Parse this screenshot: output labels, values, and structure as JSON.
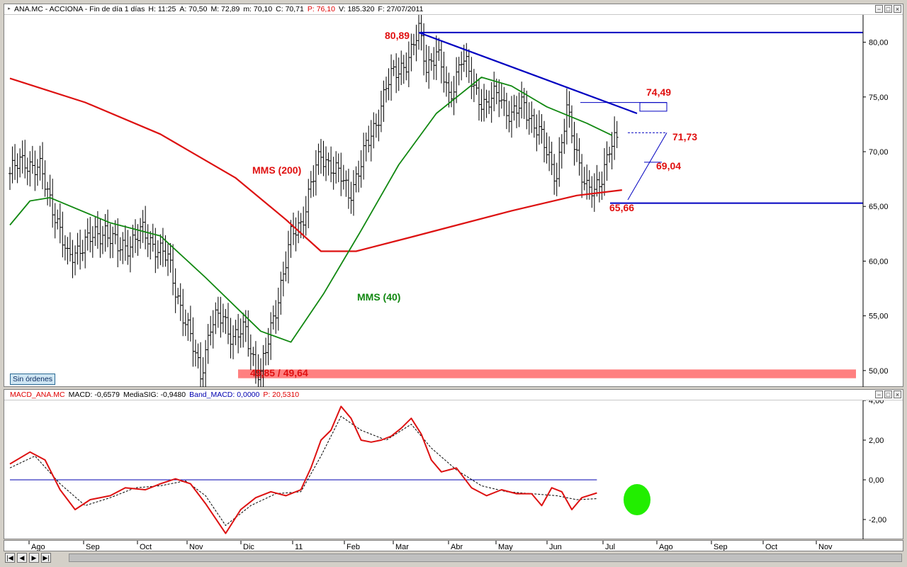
{
  "price_window": {
    "title": "ANA.MC - ACCIONA - Fin de día 1 días",
    "fields": [
      {
        "label": "H:",
        "value": "11:25",
        "color": "#000000"
      },
      {
        "label": "A:",
        "value": "70,50",
        "color": "#000000"
      },
      {
        "label": "M:",
        "value": "72,89",
        "color": "#000000"
      },
      {
        "label": "m:",
        "value": "70,10",
        "color": "#000000"
      },
      {
        "label": "C:",
        "value": "70,71",
        "color": "#000000"
      },
      {
        "label": "P:",
        "value": "76,10",
        "color": "#e00000"
      },
      {
        "label": "V:",
        "value": "185.320",
        "color": "#000000"
      },
      {
        "label": "F:",
        "value": "27/07/2011",
        "color": "#000000"
      }
    ],
    "y_ticks": [
      "80,00",
      "75,00",
      "70,00",
      "65,00",
      "60,00",
      "55,00",
      "50,00"
    ],
    "annotations": {
      "high": "80,89",
      "resistance": "74,49",
      "level_1": "71,73",
      "level_2": "69,04",
      "support": "65,66",
      "low": "49,85 / 49,64",
      "mms200": "MMS (200)",
      "mms40": "MMS (40)"
    },
    "orders_button": "Sin órdenes"
  },
  "macd_window": {
    "title": "MACD_ANA.MC",
    "fields": [
      {
        "label": "MACD:",
        "value": "-0,6579",
        "color": "#000000"
      },
      {
        "label": "MediaSIG:",
        "value": "-0,9480",
        "color": "#000000"
      },
      {
        "label": "Band_MACD:",
        "value": "0,0000",
        "color": "#0000b0"
      },
      {
        "label": "P:",
        "value": "20,5310",
        "color": "#e00000"
      }
    ],
    "y_ticks": [
      "4,00",
      "2,00",
      "0,00",
      "-2,00"
    ]
  },
  "x_axis": {
    "labels": [
      "Ago",
      "Sep",
      "Oct",
      "Nov",
      "Dic",
      "11",
      "Feb",
      "Mar",
      "Abr",
      "May",
      "Jun",
      "Jul",
      "Ago",
      "Sep",
      "Oct",
      "Nov"
    ]
  },
  "window_buttons": {
    "minimize": "−",
    "restore": "□",
    "close": "×"
  },
  "nav_buttons": [
    "|◀",
    "◀",
    "▶",
    "▶|"
  ],
  "colors": {
    "mms200": "#dd1111",
    "mms40": "#118811",
    "trendline": "#0000c0",
    "annotation": "#e01010",
    "support_zone": "#ff8080",
    "macd_line": "#dd1111",
    "macd_signal": "#000000",
    "macd_zero": "#0000b0",
    "highlight": "#22ee00"
  },
  "chart_data": [
    {
      "type": "ohlc",
      "y_range": [
        48.5,
        82.5
      ],
      "ticks": [
        80,
        75,
        70,
        65,
        60,
        55,
        50
      ],
      "anchors_close": [
        [
          0,
          68.0
        ],
        [
          6,
          69.3
        ],
        [
          12,
          68.2
        ],
        [
          18,
          64.5
        ],
        [
          23,
          60.0
        ],
        [
          28,
          61.5
        ],
        [
          33,
          62.0
        ],
        [
          38,
          63.0
        ],
        [
          43,
          61.0
        ],
        [
          48,
          61.8
        ],
        [
          53,
          62.5
        ],
        [
          58,
          61.5
        ],
        [
          63,
          60.0
        ],
        [
          68,
          56.0
        ],
        [
          73,
          52.0
        ],
        [
          76,
          49.85
        ],
        [
          80,
          54.0
        ],
        [
          85,
          55.0
        ],
        [
          89,
          53.0
        ],
        [
          94,
          53.5
        ],
        [
          98,
          50.5
        ],
        [
          100,
          49.64
        ],
        [
          103,
          52.5
        ],
        [
          108,
          58.0
        ],
        [
          112,
          62.0
        ],
        [
          116,
          63.5
        ],
        [
          120,
          67.0
        ],
        [
          124,
          69.5
        ],
        [
          128,
          69.0
        ],
        [
          132,
          67.5
        ],
        [
          135,
          66.0
        ],
        [
          140,
          69.0
        ],
        [
          145,
          72.0
        ],
        [
          150,
          76.0
        ],
        [
          155,
          77.5
        ],
        [
          160,
          79.0
        ],
        [
          163,
          80.89
        ],
        [
          166,
          78.0
        ],
        [
          170,
          79.0
        ],
        [
          175,
          75.0
        ],
        [
          180,
          78.5
        ],
        [
          185,
          76.0
        ],
        [
          190,
          74.0
        ],
        [
          195,
          75.5
        ],
        [
          200,
          73.0
        ],
        [
          205,
          74.5
        ],
        [
          210,
          72.0
        ],
        [
          214,
          70.0
        ],
        [
          218,
          68.0
        ],
        [
          222,
          73.5
        ],
        [
          226,
          70.0
        ],
        [
          230,
          66.5
        ],
        [
          233,
          66.0
        ],
        [
          236,
          68.0
        ],
        [
          239,
          70.5
        ],
        [
          242,
          70.71
        ]
      ],
      "series": [
        {
          "name": "MMS (200)",
          "points": [
            [
              0,
              76.7
            ],
            [
              30,
              74.5
            ],
            [
              60,
              71.6
            ],
            [
              90,
              67.6
            ],
            [
              110,
              63.8
            ],
            [
              124,
              60.9
            ],
            [
              138,
              60.9
            ],
            [
              160,
              62.2
            ],
            [
              200,
              64.6
            ],
            [
              226,
              66.0
            ],
            [
              244,
              66.5
            ]
          ]
        },
        {
          "name": "MMS (40)",
          "points": [
            [
              0,
              63.3
            ],
            [
              8,
              65.5
            ],
            [
              16,
              65.8
            ],
            [
              40,
              63.5
            ],
            [
              60,
              62.3
            ],
            [
              78,
              58.5
            ],
            [
              100,
              53.6
            ],
            [
              112,
              52.6
            ],
            [
              125,
              57.0
            ],
            [
              140,
              62.8
            ],
            [
              155,
              68.8
            ],
            [
              170,
              73.5
            ],
            [
              188,
              76.8
            ],
            [
              200,
              76.0
            ],
            [
              214,
              74.1
            ],
            [
              230,
              72.6
            ],
            [
              240,
              71.5
            ]
          ]
        }
      ],
      "reference_lines": [
        80.89,
        65.3
      ],
      "trendline": [
        [
          163,
          80.89
        ],
        [
          250,
          73.5
        ]
      ],
      "support_zone": [
        49.3,
        50.1
      ]
    },
    {
      "type": "line",
      "y_range": [
        -3.0,
        4.0
      ],
      "ticks": [
        4,
        2,
        0,
        -2
      ],
      "series": [
        {
          "name": "MACD",
          "points": [
            [
              0,
              0.8
            ],
            [
              8,
              1.4
            ],
            [
              14,
              1.0
            ],
            [
              20,
              -0.5
            ],
            [
              26,
              -1.5
            ],
            [
              32,
              -1.0
            ],
            [
              40,
              -0.8
            ],
            [
              46,
              -0.4
            ],
            [
              54,
              -0.5
            ],
            [
              60,
              -0.2
            ],
            [
              66,
              0.05
            ],
            [
              72,
              -0.2
            ],
            [
              78,
              -1.2
            ],
            [
              86,
              -2.7
            ],
            [
              92,
              -1.5
            ],
            [
              98,
              -0.9
            ],
            [
              104,
              -0.6
            ],
            [
              110,
              -0.8
            ],
            [
              116,
              -0.5
            ],
            [
              120,
              0.6
            ],
            [
              124,
              2.0
            ],
            [
              128,
              2.5
            ],
            [
              132,
              3.7
            ],
            [
              136,
              3.1
            ],
            [
              140,
              2.0
            ],
            [
              144,
              1.9
            ],
            [
              148,
              2.0
            ],
            [
              152,
              2.2
            ],
            [
              156,
              2.6
            ],
            [
              160,
              3.1
            ],
            [
              164,
              2.3
            ],
            [
              168,
              1.0
            ],
            [
              172,
              0.4
            ],
            [
              178,
              0.6
            ],
            [
              184,
              -0.4
            ],
            [
              190,
              -0.8
            ],
            [
              196,
              -0.5
            ],
            [
              202,
              -0.7
            ],
            [
              208,
              -0.7
            ],
            [
              212,
              -1.3
            ],
            [
              216,
              -0.4
            ],
            [
              220,
              -0.6
            ],
            [
              224,
              -1.5
            ],
            [
              228,
              -0.9
            ],
            [
              234,
              -0.66
            ]
          ]
        },
        {
          "name": "MediaSIG",
          "points": [
            [
              0,
              0.6
            ],
            [
              10,
              1.2
            ],
            [
              20,
              -0.2
            ],
            [
              30,
              -1.3
            ],
            [
              40,
              -0.9
            ],
            [
              50,
              -0.4
            ],
            [
              60,
              -0.3
            ],
            [
              70,
              -0.05
            ],
            [
              78,
              -0.8
            ],
            [
              86,
              -2.3
            ],
            [
              96,
              -1.3
            ],
            [
              106,
              -0.7
            ],
            [
              116,
              -0.6
            ],
            [
              124,
              1.2
            ],
            [
              132,
              3.2
            ],
            [
              140,
              2.5
            ],
            [
              150,
              2.0
            ],
            [
              160,
              2.8
            ],
            [
              168,
              1.6
            ],
            [
              178,
              0.5
            ],
            [
              188,
              -0.3
            ],
            [
              198,
              -0.6
            ],
            [
              208,
              -0.7
            ],
            [
              218,
              -0.8
            ],
            [
              226,
              -1.0
            ],
            [
              234,
              -0.95
            ]
          ]
        },
        {
          "name": "Band_MACD",
          "points": [
            [
              0,
              0.0
            ],
            [
              234,
              0.0
            ]
          ]
        }
      ]
    }
  ]
}
